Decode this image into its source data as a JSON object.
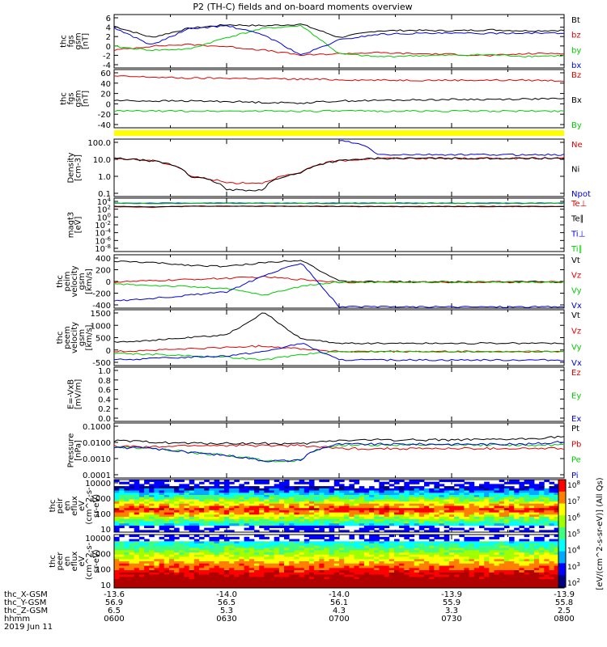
{
  "title": "P2 (TH-C) fields and on-board moments overview",
  "colors": {
    "black": "#000000",
    "red": "#e00000",
    "green": "#00cc00",
    "blue": "#0000dd",
    "yellow": "#ffff00"
  },
  "chart_data": [
    {
      "type": "line",
      "ylabel": [
        "thc",
        "fgs",
        "gsm",
        "[nT]"
      ],
      "yticks": [
        "6",
        "4",
        "2",
        "0",
        "-2",
        "-4"
      ],
      "ylim": [
        -4,
        6.5
      ],
      "series": [
        {
          "name": "Bt",
          "color": "#000000",
          "values": [
            4.2,
            2.0,
            3.8,
            4.5,
            4.3,
            4.6,
            2.0,
            3.3,
            3.4,
            3.3,
            3.5,
            3.3,
            3.4
          ]
        },
        {
          "name": "bz",
          "color": "#e00000",
          "values": [
            -0.5,
            0.3,
            0.6,
            0.2,
            -0.5,
            -1.5,
            -1.2,
            -1.0,
            -1.2,
            -1.3,
            -1.6,
            -1.2,
            -1.1
          ]
        },
        {
          "name": "by",
          "color": "#00cc00",
          "values": [
            0.2,
            -0.5,
            -0.3,
            2.0,
            3.8,
            4.3,
            -1.2,
            -1.8,
            -1.6,
            -1.5,
            -1.4,
            -1.7,
            -1.6
          ]
        },
        {
          "name": "bx",
          "color": "#0000dd",
          "values": [
            3.9,
            0.5,
            3.7,
            4.3,
            2.5,
            -1.5,
            1.5,
            2.6,
            2.8,
            2.8,
            2.8,
            2.9,
            2.8
          ]
        }
      ]
    },
    {
      "type": "line",
      "ylabel": [
        "thc",
        "fgs",
        "gsm",
        "[nT]"
      ],
      "yticks": [
        "60",
        "40",
        "20",
        "0",
        "-20",
        "-40"
      ],
      "ylim": [
        -50,
        65
      ],
      "series": [
        {
          "name": "Bz",
          "color": "#e00000",
          "values": [
            52,
            50,
            48,
            48,
            47,
            46,
            45,
            44,
            44,
            44,
            44,
            44,
            43
          ]
        },
        {
          "name": "Bx",
          "color": "#000000",
          "values": [
            4,
            3,
            3,
            2,
            0,
            -1,
            3,
            4,
            5,
            6,
            6,
            7,
            7
          ]
        },
        {
          "name": "By",
          "color": "#00cc00",
          "values": [
            -17,
            -17,
            -17,
            -17,
            -17,
            -17,
            -17,
            -17,
            -17,
            -17,
            -17,
            -17,
            -17
          ]
        }
      ]
    },
    {
      "type": "line",
      "ylabel": [
        "Density",
        "[cm-3]"
      ],
      "yticks": [
        "100.0",
        "10.0",
        "1.0",
        "0.1"
      ],
      "log": true,
      "ylim": [
        0.01,
        150
      ],
      "series": [
        {
          "name": "Ne",
          "color": "#e00000",
          "values": [
            6,
            4,
            0.3,
            0.1,
            0.1,
            0.5,
            4,
            6,
            6,
            6,
            6,
            6,
            6
          ]
        },
        {
          "name": "Ni",
          "color": "#000000",
          "values": [
            6,
            4,
            0.3,
            0.03,
            0.03,
            0.5,
            4,
            6,
            6,
            6,
            6,
            6,
            6
          ]
        },
        {
          "name": "Npot",
          "color": "#0000dd",
          "values": [
            null,
            null,
            null,
            null,
            null,
            null,
            120,
            11,
            11,
            11,
            11,
            11,
            11
          ]
        }
      ]
    },
    {
      "type": "line",
      "ylabel": [
        "magt3",
        "[eV]"
      ],
      "yticks": [
        "10^4",
        "10^2",
        "10^0",
        "10^-2",
        "10^-4",
        "10^-6",
        "10^-8"
      ],
      "log": true,
      "ylim": [
        1e-09,
        100000.0
      ],
      "series": [
        {
          "name": "Te⊥",
          "color": "#e00000",
          "values": [
            600,
            400,
            700,
            700,
            700,
            700,
            600,
            600,
            600,
            600,
            600,
            600,
            600
          ]
        },
        {
          "name": "Te∥",
          "color": "#000000",
          "values": [
            700,
            500,
            800,
            800,
            800,
            800,
            700,
            700,
            700,
            700,
            700,
            700,
            700
          ]
        },
        {
          "name": "Ti⊥",
          "color": "#0000dd",
          "values": [
            5000,
            5000,
            5000,
            5000,
            5000,
            5000,
            5000,
            5000,
            5000,
            5000,
            5000,
            5000,
            5000
          ]
        },
        {
          "name": "Ti∥",
          "color": "#00cc00",
          "values": [
            4000,
            4000,
            4000,
            4000,
            4000,
            4000,
            4000,
            4000,
            4000,
            4000,
            4000,
            4000,
            4000
          ]
        }
      ]
    },
    {
      "type": "line",
      "ylabel": [
        "thc",
        "peim",
        "velocity",
        "gsm",
        "[km/s]"
      ],
      "yticks": [
        "400",
        "200",
        "0",
        "-200",
        "-400"
      ],
      "ylim": [
        -400,
        420
      ],
      "series": [
        {
          "name": "Vt",
          "color": "#000000",
          "values": [
            320,
            300,
            260,
            240,
            300,
            340,
            10,
            5,
            5,
            5,
            5,
            5,
            5
          ]
        },
        {
          "name": "Vz",
          "color": "#e00000",
          "values": [
            0,
            20,
            40,
            60,
            80,
            40,
            0,
            0,
            0,
            0,
            0,
            0,
            0
          ]
        },
        {
          "name": "Vy",
          "color": "#00cc00",
          "values": [
            -30,
            -50,
            -70,
            -100,
            -200,
            -60,
            0,
            0,
            0,
            0,
            0,
            0,
            0
          ]
        },
        {
          "name": "Vx",
          "color": "#0000dd",
          "values": [
            -290,
            -250,
            -200,
            -150,
            100,
            300,
            -380,
            -380,
            -380,
            -380,
            -380,
            -380,
            -380
          ]
        }
      ]
    },
    {
      "type": "line",
      "ylabel": [
        "thc",
        "peem",
        "velocity",
        "gsm",
        "[km/s]"
      ],
      "yticks": [
        "1500",
        "1000",
        "500",
        "0",
        "-500"
      ],
      "ylim": [
        -500,
        1500
      ],
      "series": [
        {
          "name": "Vt",
          "color": "#000000",
          "values": [
            350,
            400,
            500,
            600,
            1400,
            450,
            300,
            300,
            300,
            300,
            300,
            300,
            300
          ]
        },
        {
          "name": "Vz",
          "color": "#e00000",
          "values": [
            0,
            50,
            100,
            150,
            200,
            100,
            0,
            0,
            0,
            0,
            0,
            0,
            0
          ]
        },
        {
          "name": "Vy",
          "color": "#00cc00",
          "values": [
            -50,
            -100,
            -150,
            -200,
            -300,
            -100,
            0,
            0,
            0,
            0,
            0,
            0,
            0
          ]
        },
        {
          "name": "Vx",
          "color": "#0000dd",
          "values": [
            -300,
            -250,
            -200,
            -150,
            0,
            300,
            -300,
            -300,
            -300,
            -300,
            -300,
            -300,
            -300
          ]
        }
      ]
    },
    {
      "type": "line",
      "ylabel": [
        "E=-VxB",
        "[mV/m]"
      ],
      "yticks": [
        "1.0",
        "0.8",
        "0.6",
        "0.4",
        "0.2",
        "0.0"
      ],
      "ylim": [
        0,
        1
      ],
      "series": [
        {
          "name": "Ez",
          "color": "#e00000",
          "values": []
        },
        {
          "name": "Ey",
          "color": "#00cc00",
          "values": []
        },
        {
          "name": "Ex",
          "color": "#0000dd",
          "values": []
        }
      ]
    },
    {
      "type": "line",
      "ylabel": [
        "Pressure",
        "[nPa]"
      ],
      "yticks": [
        "0.1000",
        "0.0100",
        "0.0010",
        "0.0001"
      ],
      "log": true,
      "ylim": [
        0.0001,
        0.15
      ],
      "series": [
        {
          "name": "Pt",
          "color": "#000000",
          "values": [
            0.014,
            0.012,
            0.01,
            0.01,
            0.01,
            0.009,
            0.015,
            0.016,
            0.016,
            0.016,
            0.016,
            0.018,
            0.025
          ]
        },
        {
          "name": "Pb",
          "color": "#e00000",
          "values": [
            0.007,
            0.006,
            0.0075,
            0.0075,
            0.0075,
            0.0075,
            0.005,
            0.005,
            0.005,
            0.005,
            0.005,
            0.005,
            0.005
          ]
        },
        {
          "name": "Pe",
          "color": "#00cc00",
          "values": [
            0.006,
            0.005,
            0.003,
            0.002,
            0.001,
            0.001,
            0.008,
            0.008,
            0.008,
            0.008,
            0.008,
            0.008,
            0.008
          ]
        },
        {
          "name": "Pi",
          "color": "#0000dd",
          "values": [
            0.006,
            0.005,
            0.003,
            0.002,
            0.001,
            0.001,
            0.009,
            0.009,
            0.009,
            0.009,
            0.009,
            0.009,
            0.012
          ]
        }
      ]
    },
    {
      "type": "heatmap",
      "ylabel": [
        "thc",
        "peir",
        "en",
        "eflux",
        "eV",
        "(cm^2-s-",
        "sr-eV)"
      ],
      "yticks": [
        "10000",
        "1000",
        "100",
        "10"
      ],
      "log": true,
      "ylim": [
        3,
        20000
      ]
    },
    {
      "type": "heatmap",
      "ylabel": [
        "thc",
        "peer",
        "en",
        "eflux",
        "eV",
        "(cm^2-s-",
        "sr-eV)"
      ],
      "yticks": [
        "10000",
        "1000",
        "100",
        "10"
      ],
      "log": true,
      "ylim": [
        3,
        20000
      ]
    }
  ],
  "colorbar": {
    "ticks": [
      "10^8",
      "10^7",
      "10^6",
      "10^5",
      "10^4",
      "10^3",
      "10^2"
    ],
    "label": "[eV/(cm^2-s-sr-eV)] (All Qs)"
  },
  "x_axis": {
    "ticklabels": [
      {
        "x": "-13.6",
        "y": "56.9",
        "z": "6.5",
        "t": "0600"
      },
      {
        "x": "-14.0",
        "y": "56.5",
        "z": "5.3",
        "t": "0630"
      },
      {
        "x": "-14.0",
        "y": "56.1",
        "z": "4.3",
        "t": "0700"
      },
      {
        "x": "-13.9",
        "y": "55.9",
        "z": "3.3",
        "t": "0730"
      },
      {
        "x": "-13.9",
        "y": "55.8",
        "z": "2.5",
        "t": "0800"
      }
    ],
    "row_labels": [
      "thc_X-GSM",
      "thc_Y-GSM",
      "thc_Z-GSM",
      "hhmm",
      "2019 Jun 11"
    ]
  }
}
